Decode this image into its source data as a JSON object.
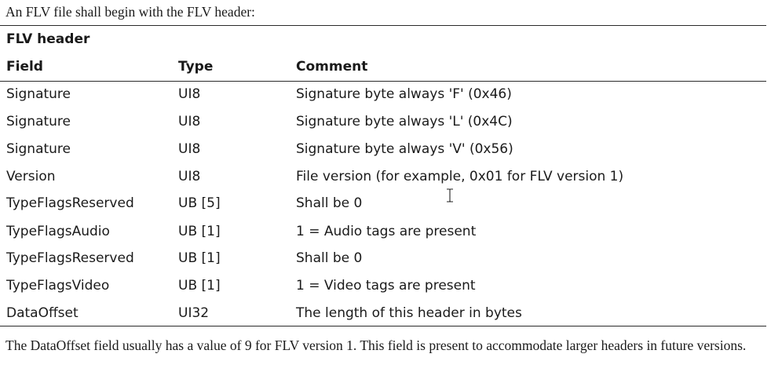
{
  "intro_text": "An FLV file shall begin with the FLV header:",
  "table": {
    "title": "FLV header",
    "columns": [
      "Field",
      "Type",
      "Comment"
    ],
    "rows": [
      {
        "field": "Signature",
        "type": "UI8",
        "comment": "Signature byte always 'F' (0x46)"
      },
      {
        "field": "Signature",
        "type": "UI8",
        "comment": "Signature byte always 'L' (0x4C)"
      },
      {
        "field": "Signature",
        "type": "UI8",
        "comment": "Signature byte always 'V' (0x56)"
      },
      {
        "field": "Version",
        "type": "UI8",
        "comment": "File version (for example, 0x01 for FLV version 1)"
      },
      {
        "field": "TypeFlagsReserved",
        "type": "UB [5]",
        "comment": "Shall be 0"
      },
      {
        "field": "TypeFlagsAudio",
        "type": "UB [1]",
        "comment": "1 = Audio tags are present"
      },
      {
        "field": "TypeFlagsReserved",
        "type": "UB [1]",
        "comment": "Shall be 0"
      },
      {
        "field": "TypeFlagsVideo",
        "type": "UB [1]",
        "comment": "1 = Video tags are present"
      },
      {
        "field": "DataOffset",
        "type": "UI32",
        "comment": "The length of this header in bytes"
      }
    ]
  },
  "note_text": "The DataOffset field usually has a value of 9 for FLV version 1. This field is present to accommodate larger headers in future versions.",
  "cursor": {
    "icon": "text-cursor-icon"
  }
}
